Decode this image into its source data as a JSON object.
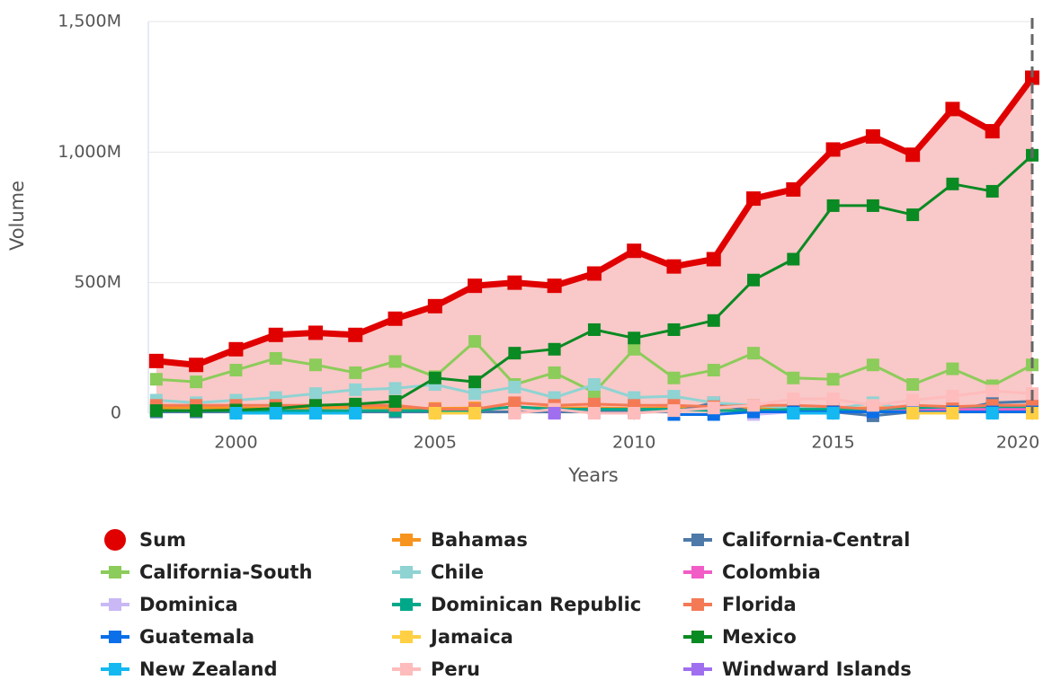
{
  "chart_data": {
    "type": "line",
    "xlabel": "Years",
    "ylabel": "Volume",
    "xlim": [
      1997.8,
      2020
    ],
    "ylim": [
      0,
      1500
    ],
    "xticks": [
      2000,
      2005,
      2010,
      2015,
      2020
    ],
    "yticks": [
      {
        "value": 0,
        "label": "0"
      },
      {
        "value": 500,
        "label": "500M"
      },
      {
        "value": 1000,
        "label": "1,000M"
      },
      {
        "value": 1500,
        "label": "1,500M"
      }
    ],
    "grid": true,
    "x": [
      1998,
      1999,
      2000,
      2001,
      2002,
      2003,
      2004,
      2005,
      2006,
      2007,
      2008,
      2009,
      2010,
      2011,
      2012,
      2013,
      2014,
      2015,
      2016,
      2017,
      2018,
      2019,
      2020
    ],
    "series": [
      {
        "name": "Sum",
        "color": "#e00000",
        "fill": "#f9c8c8",
        "values": [
          200,
          185,
          245,
          300,
          308,
          300,
          362,
          410,
          488,
          500,
          488,
          535,
          622,
          562,
          590,
          822,
          857,
          1010,
          1060,
          990,
          1165,
          1080,
          1285
        ]
      },
      {
        "name": "Bahamas",
        "color": "#f7941d",
        "values": [
          20,
          22,
          20,
          18,
          20,
          22,
          20,
          18,
          20,
          22,
          20,
          20,
          18,
          20,
          22,
          20,
          20,
          18,
          20,
          22,
          20,
          20,
          22
        ]
      },
      {
        "name": "California-Central",
        "color": "#4d7aa8",
        "values": [
          5,
          5,
          5,
          5,
          5,
          5,
          5,
          5,
          5,
          5,
          5,
          5,
          5,
          5,
          40,
          5,
          5,
          5,
          -10,
          5,
          10,
          40,
          45
        ]
      },
      {
        "name": "California-South",
        "color": "#8ccc5a",
        "values": [
          130,
          120,
          165,
          210,
          185,
          155,
          198,
          140,
          275,
          110,
          155,
          80,
          245,
          135,
          165,
          230,
          135,
          130,
          185,
          110,
          170,
          105,
          185
        ]
      },
      {
        "name": "Chile",
        "color": "#8fd3d3",
        "values": [
          50,
          40,
          50,
          60,
          75,
          90,
          95,
          110,
          75,
          100,
          60,
          110,
          60,
          65,
          40,
          30,
          20,
          15,
          40,
          10,
          20,
          15,
          20
        ]
      },
      {
        "name": "Colombia",
        "color": "#f25cc6",
        "values": [
          null,
          null,
          null,
          null,
          null,
          null,
          null,
          null,
          null,
          null,
          null,
          null,
          null,
          null,
          null,
          null,
          null,
          null,
          5,
          10,
          15,
          15,
          15
        ]
      },
      {
        "name": "Dominica",
        "color": "#c9b8f5",
        "values": [
          null,
          null,
          null,
          null,
          null,
          null,
          null,
          null,
          null,
          null,
          null,
          null,
          null,
          null,
          null,
          -5,
          5,
          5,
          5,
          5,
          5,
          5,
          5
        ]
      },
      {
        "name": "Dominican Republic",
        "color": "#00a88a",
        "values": [
          10,
          10,
          10,
          10,
          10,
          10,
          10,
          10,
          10,
          25,
          15,
          15,
          15,
          15,
          10,
          10,
          15,
          15,
          15,
          20,
          25,
          25,
          25
        ]
      },
      {
        "name": "Florida",
        "color": "#f47a55",
        "values": [
          30,
          30,
          30,
          30,
          30,
          30,
          30,
          15,
          15,
          40,
          30,
          35,
          30,
          30,
          25,
          30,
          30,
          25,
          15,
          30,
          25,
          30,
          30
        ]
      },
      {
        "name": "Guatemala",
        "color": "#0a6fe8",
        "values": [
          null,
          null,
          null,
          null,
          null,
          null,
          null,
          null,
          null,
          null,
          null,
          null,
          null,
          -5,
          -5,
          5,
          5,
          5,
          5,
          5,
          5,
          5,
          5
        ]
      },
      {
        "name": "Jamaica",
        "color": "#ffd043",
        "values": [
          null,
          null,
          null,
          null,
          null,
          null,
          null,
          0,
          0,
          null,
          null,
          null,
          null,
          null,
          null,
          null,
          null,
          null,
          null,
          0,
          0,
          null,
          0
        ]
      },
      {
        "name": "Mexico",
        "color": "#0a8a23",
        "values": [
          10,
          10,
          12,
          18,
          30,
          35,
          45,
          135,
          120,
          230,
          245,
          320,
          288,
          320,
          355,
          510,
          590,
          795,
          795,
          760,
          878,
          850,
          988
        ]
      },
      {
        "name": "New Zealand",
        "color": "#15b8f0",
        "values": [
          null,
          null,
          0,
          0,
          0,
          0,
          null,
          null,
          null,
          null,
          null,
          null,
          null,
          null,
          null,
          null,
          0,
          0,
          null,
          null,
          null,
          0,
          null
        ]
      },
      {
        "name": "Peru",
        "color": "#ffbcbc",
        "values": [
          null,
          null,
          null,
          null,
          null,
          null,
          null,
          null,
          null,
          0,
          15,
          0,
          0,
          10,
          20,
          30,
          55,
          55,
          30,
          50,
          65,
          85,
          75
        ]
      },
      {
        "name": "Windward Islands",
        "color": "#9f6ff0",
        "values": [
          null,
          null,
          null,
          null,
          null,
          null,
          null,
          null,
          null,
          null,
          0,
          null,
          null,
          null,
          null,
          null,
          null,
          null,
          null,
          null,
          null,
          null,
          null
        ]
      }
    ]
  }
}
